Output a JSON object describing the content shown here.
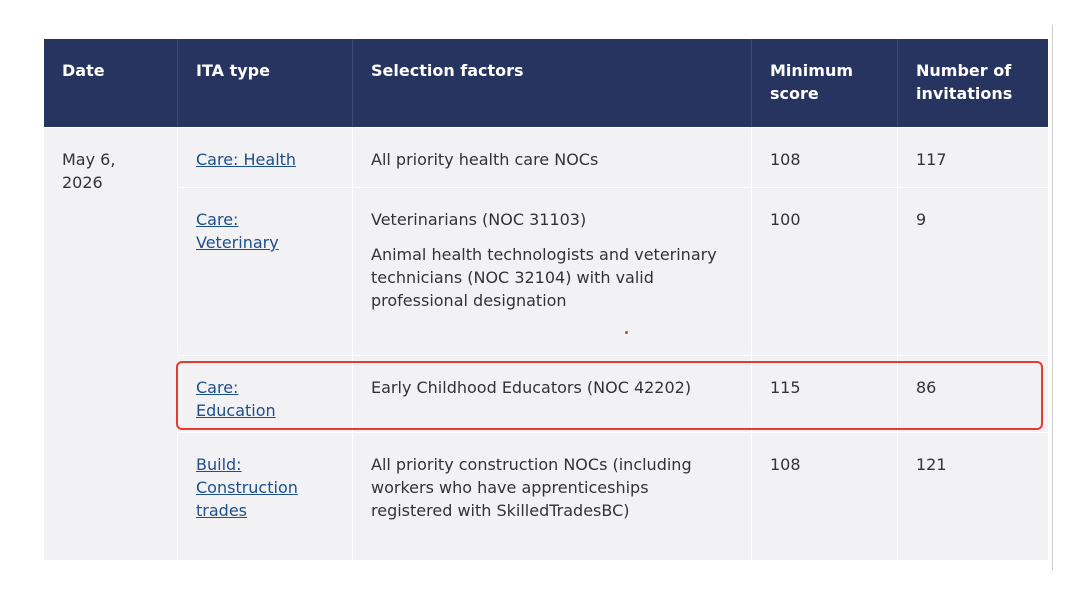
{
  "table": {
    "header": [
      "Date",
      "ITA type",
      "Selection factors",
      "Minimum score",
      "Number of invitations"
    ],
    "date": "May 6, 2026",
    "rows": [
      {
        "ita_type": "Care: Health",
        "selection": [
          "All priority health care NOCs"
        ],
        "minimum_score": 108,
        "invitations": 117
      },
      {
        "ita_type": "Care: Veterinary",
        "selection": [
          "Veterinarians (NOC 31103)",
          "Animal health technologists and veterinary technicians (NOC 32104) with valid professional designation"
        ],
        "minimum_score": 100,
        "invitations": 9
      },
      {
        "ita_type": "Care: Education",
        "selection": [
          "Early Childhood Educators (NOC 42202)"
        ],
        "minimum_score": 115,
        "invitations": 86
      },
      {
        "ita_type": "Build: Construction trades",
        "selection": [
          "All priority construction NOCs (including workers who have apprenticeships registered with SkilledTradesBC)"
        ],
        "minimum_score": 108,
        "invitations": 121
      }
    ]
  }
}
